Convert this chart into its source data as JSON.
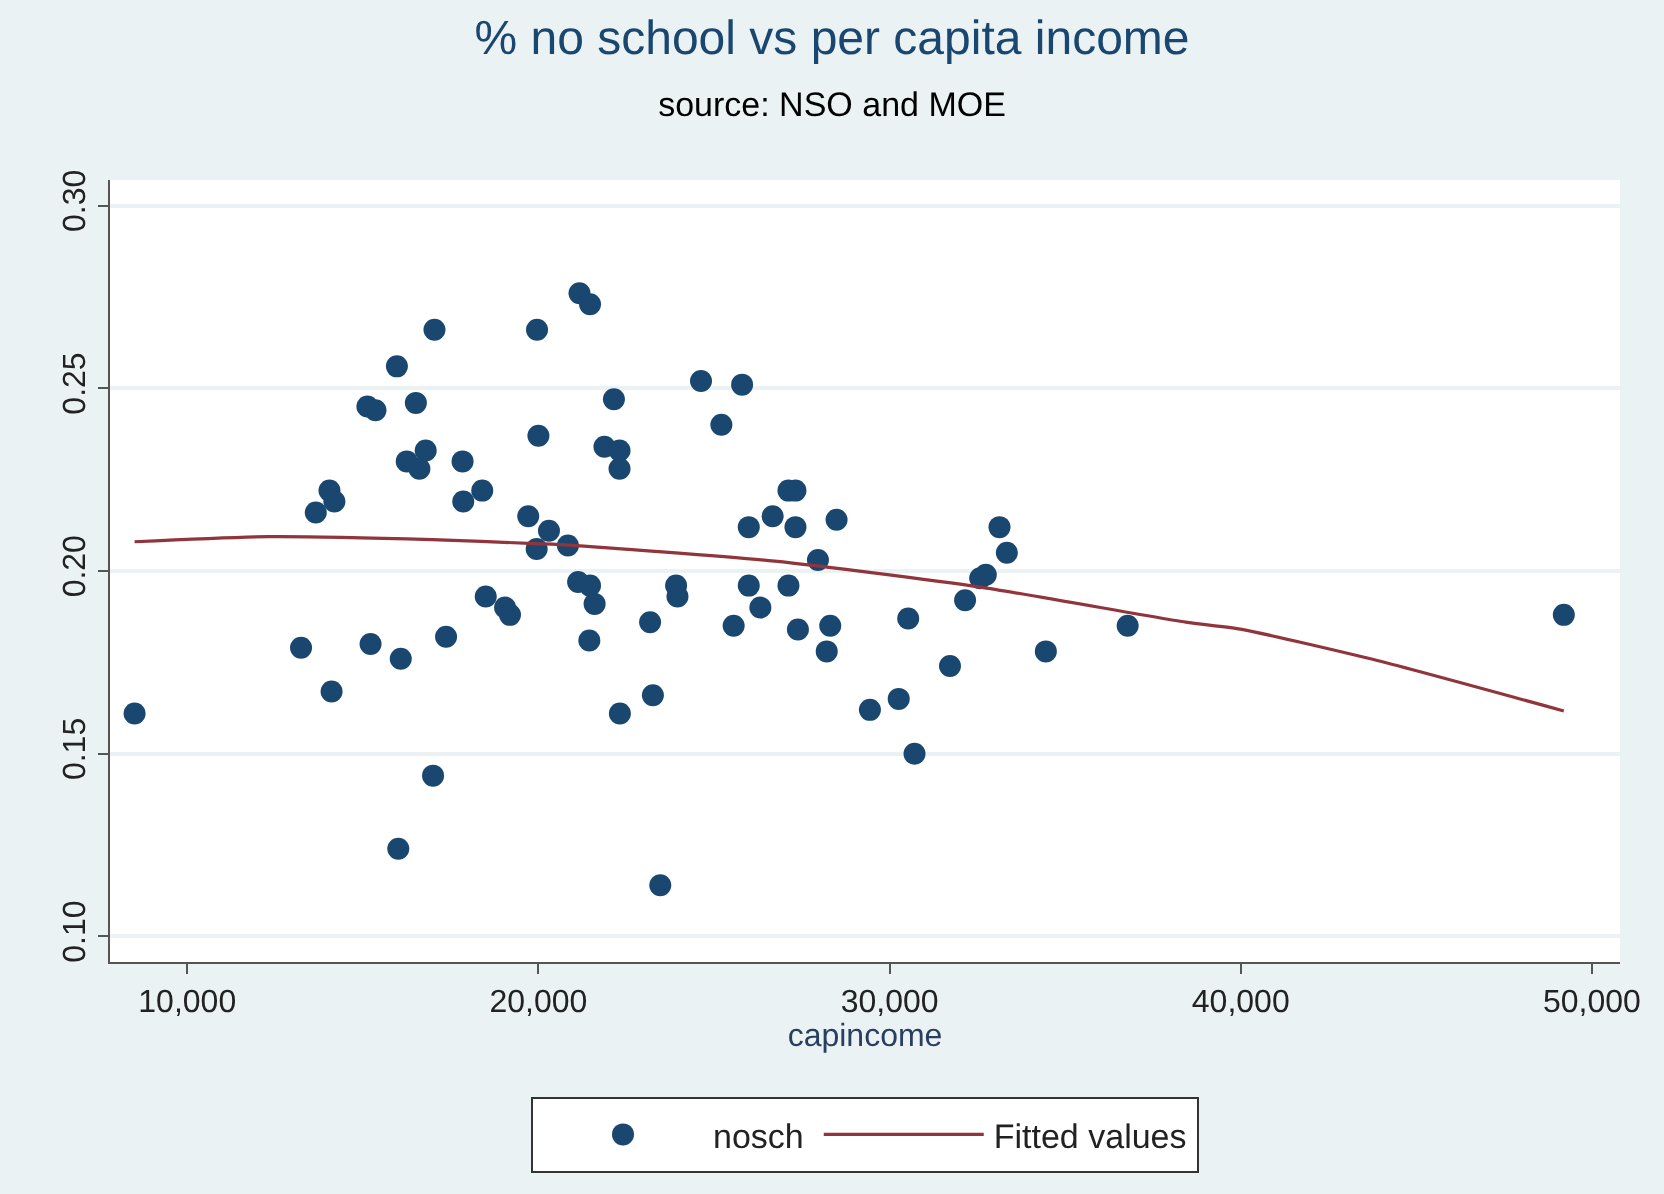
{
  "chart_data": {
    "type": "scatter",
    "title": "% no school vs per capita income",
    "subtitle": "source: NSO and MOE",
    "xlabel": "capincome",
    "xlim": [
      7800,
      50800
    ],
    "xticks": [
      {
        "value": 10000,
        "label": "10,000"
      },
      {
        "value": 20000,
        "label": "20,000"
      },
      {
        "value": 30000,
        "label": "30,000"
      },
      {
        "value": 40000,
        "label": "40,000"
      },
      {
        "value": 50000,
        "label": "50,000"
      }
    ],
    "ylim": [
      0.093,
      0.307
    ],
    "yticks": [
      {
        "value": 0.1,
        "label": "0.10"
      },
      {
        "value": 0.15,
        "label": "0.15"
      },
      {
        "value": 0.2,
        "label": "0.20"
      },
      {
        "value": 0.25,
        "label": "0.25"
      },
      {
        "value": 0.3,
        "label": "0.30"
      }
    ],
    "grid": "y",
    "legend": "bottom",
    "marker": "circle",
    "series": [
      {
        "name": "nosch",
        "color": "#1a476f",
        "x": [
          8500,
          13240,
          14110,
          15220,
          16080,
          17370,
          17000,
          16010,
          13660,
          14050,
          14190,
          15130,
          15360,
          15970,
          17040,
          16510,
          16250,
          16610,
          16790,
          17840,
          17860,
          18400,
          18500,
          19050,
          19190,
          19710,
          19950,
          20300,
          20840,
          20000,
          19960,
          21170,
          21470,
          22150,
          21880,
          22310,
          22310,
          21130,
          21470,
          21600,
          21450,
          23180,
          23920,
          23960,
          23260,
          22320,
          23470,
          24630,
          25210,
          25800,
          25990,
          26670,
          27120,
          27320,
          27320,
          28490,
          27960,
          25990,
          26320,
          27120,
          25560,
          27390,
          28310,
          28210,
          30530,
          29440,
          30260,
          30710,
          31720,
          32150,
          32580,
          32740,
          33130,
          33340,
          34450,
          36780,
          49200
        ],
        "values": [
          0.161,
          0.179,
          0.167,
          0.18,
          0.176,
          0.182,
          0.144,
          0.124,
          0.216,
          0.222,
          0.219,
          0.245,
          0.244,
          0.256,
          0.266,
          0.246,
          0.23,
          0.228,
          0.233,
          0.23,
          0.219,
          0.222,
          0.193,
          0.19,
          0.188,
          0.215,
          0.206,
          0.211,
          0.207,
          0.237,
          0.266,
          0.276,
          0.273,
          0.247,
          0.234,
          0.233,
          0.228,
          0.197,
          0.196,
          0.191,
          0.181,
          0.186,
          0.196,
          0.193,
          0.166,
          0.161,
          0.114,
          0.252,
          0.24,
          0.251,
          0.212,
          0.215,
          0.222,
          0.222,
          0.212,
          0.214,
          0.203,
          0.196,
          0.19,
          0.196,
          0.185,
          0.184,
          0.185,
          0.178,
          0.187,
          0.162,
          0.165,
          0.15,
          0.174,
          0.192,
          0.198,
          0.199,
          0.212,
          0.205,
          0.178,
          0.185,
          0.188
        ]
      },
      {
        "name": "Fitted values",
        "type": "line",
        "color": "#90353b",
        "marker": "none",
        "x": [
          8500,
          12300,
          16980,
          19900,
          20880,
          26730,
          32580,
          38430,
          39990,
          43890,
          49200
        ],
        "values": [
          0.208,
          0.2094,
          0.2086,
          0.2075,
          0.2071,
          0.2027,
          0.1956,
          0.186,
          0.1841,
          0.1755,
          0.1617
        ]
      }
    ]
  }
}
